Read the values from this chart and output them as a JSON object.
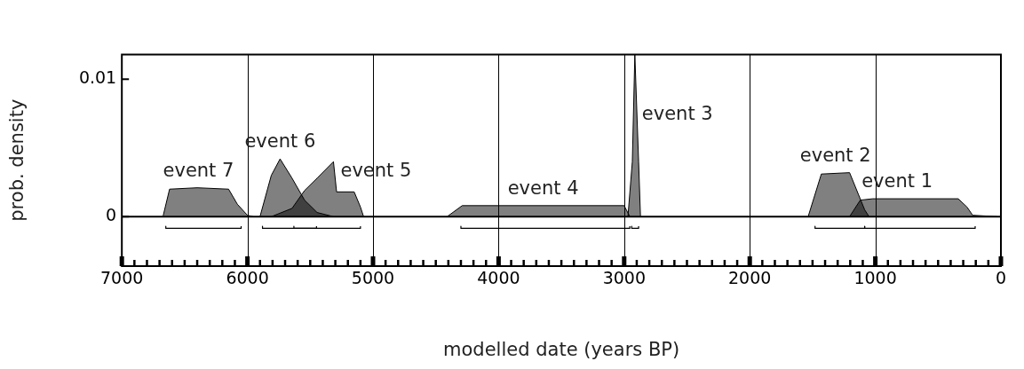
{
  "chart_data": {
    "type": "area",
    "xlabel": "modelled date (years BP)",
    "ylabel": "prob. density",
    "xlim": [
      7000,
      0
    ],
    "ylim": [
      -0.0036,
      0.0118
    ],
    "xticks": [
      7000,
      {
        "value": 6900,
        "label": null
      },
      {
        "value": 6800,
        "label": null
      },
      {
        "value": 6700,
        "label": null
      },
      {
        "value": 6600,
        "label": null
      },
      {
        "value": 6500,
        "label": null
      },
      {
        "value": 6400,
        "label": null
      },
      {
        "value": 6300,
        "label": null
      },
      {
        "value": 6200,
        "label": null
      },
      {
        "value": 6100,
        "label": null
      },
      6000,
      {
        "value": 5900,
        "label": null
      },
      {
        "value": 5800,
        "label": null
      },
      {
        "value": 5700,
        "label": null
      },
      {
        "value": 5600,
        "label": null
      },
      {
        "value": 5500,
        "label": null
      },
      {
        "value": 5400,
        "label": null
      },
      {
        "value": 5300,
        "label": null
      },
      {
        "value": 5200,
        "label": null
      },
      {
        "value": 5100,
        "label": null
      },
      5000,
      {
        "value": 4900,
        "label": null
      },
      {
        "value": 4800,
        "label": null
      },
      {
        "value": 4700,
        "label": null
      },
      {
        "value": 4600,
        "label": null
      },
      {
        "value": 4500,
        "label": null
      },
      {
        "value": 4400,
        "label": null
      },
      {
        "value": 4300,
        "label": null
      },
      {
        "value": 4200,
        "label": null
      },
      {
        "value": 4100,
        "label": null
      },
      4000,
      {
        "value": 3900,
        "label": null
      },
      {
        "value": 3800,
        "label": null
      },
      {
        "value": 3700,
        "label": null
      },
      {
        "value": 3600,
        "label": null
      },
      {
        "value": 3500,
        "label": null
      },
      {
        "value": 3400,
        "label": null
      },
      {
        "value": 3300,
        "label": null
      },
      {
        "value": 3200,
        "label": null
      },
      {
        "value": 3100,
        "label": null
      },
      3000,
      {
        "value": 2900,
        "label": null
      },
      {
        "value": 2800,
        "label": null
      },
      {
        "value": 2700,
        "label": null
      },
      {
        "value": 2600,
        "label": null
      },
      {
        "value": 2500,
        "label": null
      },
      {
        "value": 2400,
        "label": null
      },
      {
        "value": 2300,
        "label": null
      },
      {
        "value": 2200,
        "label": null
      },
      {
        "value": 2100,
        "label": null
      },
      2000,
      {
        "value": 1900,
        "label": null
      },
      {
        "value": 1800,
        "label": null
      },
      {
        "value": 1700,
        "label": null
      },
      {
        "value": 1600,
        "label": null
      },
      {
        "value": 1500,
        "label": null
      },
      {
        "value": 1400,
        "label": null
      },
      {
        "value": 1300,
        "label": null
      },
      {
        "value": 1200,
        "label": null
      },
      {
        "value": 1100,
        "label": null
      },
      1000,
      {
        "value": 900,
        "label": null
      },
      {
        "value": 800,
        "label": null
      },
      {
        "value": 700,
        "label": null
      },
      {
        "value": 600,
        "label": null
      },
      {
        "value": 500,
        "label": null
      },
      {
        "value": 400,
        "label": null
      },
      {
        "value": 300,
        "label": null
      },
      {
        "value": 200,
        "label": null
      },
      {
        "value": 100,
        "label": null
      },
      0
    ],
    "yticks": [
      0,
      0.01
    ],
    "grid": "x",
    "ref_lines": [
      {
        "axis": "y",
        "value": 0,
        "color": "#000000"
      }
    ],
    "series": [
      {
        "name": "event 7",
        "color": "#808080",
        "x": [
          6680,
          6670,
          6620,
          6400,
          6150,
          6080,
          6000,
          5955
        ],
        "values": [
          0,
          0.0001,
          0.002,
          0.0021,
          0.002,
          0.0009,
          0.0001,
          0
        ]
      },
      {
        "name": "event 6",
        "color": "#808080",
        "x": [
          5900,
          5810,
          5740,
          5645,
          5545,
          5445,
          5315
        ],
        "values": [
          0,
          0.003,
          0.0042,
          0.0028,
          0.0012,
          0.0003,
          0
        ]
      },
      {
        "name": "event 5",
        "color": "#808080",
        "x": [
          5810,
          5645,
          5545,
          5445,
          5315,
          5290,
          5150,
          5100,
          5075
        ],
        "values": [
          0,
          0.0006,
          0.0019,
          0.0028,
          0.004,
          0.0018,
          0.0018,
          0.0007,
          0
        ]
      },
      {
        "name": "event 4",
        "color": "#808080",
        "x": [
          4410,
          4290,
          3000,
          2955
        ],
        "values": [
          0,
          0.0008,
          0.0008,
          0
        ]
      },
      {
        "name": "event 3",
        "color": "#808080",
        "x": [
          2970,
          2935,
          2915,
          2885,
          2870
        ],
        "values": [
          0,
          0.004,
          0.0118,
          0.004,
          0
        ]
      },
      {
        "name": "event 2",
        "color": "#808080",
        "x": [
          1535,
          1430,
          1205,
          1085,
          1050
        ],
        "values": [
          0,
          0.0031,
          0.0032,
          0.0005,
          0
        ]
      },
      {
        "name": "event 1",
        "color": "#808080",
        "x": [
          1205,
          1120,
          1020,
          340,
          270,
          225,
          30
        ],
        "values": [
          0,
          0.0012,
          0.0013,
          0.0013,
          0.0007,
          0.0001,
          0
        ]
      },
      {
        "type": "line",
        "color": "#000000",
        "x": [
          6650,
          6650,
          6050,
          6050
        ],
        "values": [
          -0.0007,
          -0.00085,
          -0.00085,
          -0.0007
        ]
      },
      {
        "type": "line",
        "color": "#000000",
        "x": [
          5880,
          5880,
          5450,
          5450
        ],
        "values": [
          -0.0007,
          -0.00085,
          -0.00085,
          -0.0007
        ]
      },
      {
        "type": "line",
        "color": "#000000",
        "x": [
          5630,
          5630,
          5100,
          5100
        ],
        "values": [
          -0.0007,
          -0.00085,
          -0.00085,
          -0.0007
        ]
      },
      {
        "type": "line",
        "color": "#000000",
        "x": [
          4300,
          4300,
          2955,
          2955
        ],
        "values": [
          -0.0007,
          -0.00085,
          -0.00085,
          -0.0007
        ]
      },
      {
        "type": "line",
        "color": "#000000",
        "x": [
          2940,
          2940,
          2885,
          2885
        ],
        "values": [
          -0.0007,
          -0.00085,
          -0.00085,
          -0.0007
        ]
      },
      {
        "type": "line",
        "color": "#000000",
        "x": [
          1480,
          1480,
          1085,
          1085
        ],
        "values": [
          -0.0007,
          -0.00085,
          -0.00085,
          -0.0007
        ]
      },
      {
        "type": "line",
        "color": "#000000",
        "x": [
          1085,
          1085,
          205,
          205
        ],
        "values": [
          -0.0007,
          -0.00085,
          -0.00085,
          -0.0007
        ]
      }
    ]
  }
}
